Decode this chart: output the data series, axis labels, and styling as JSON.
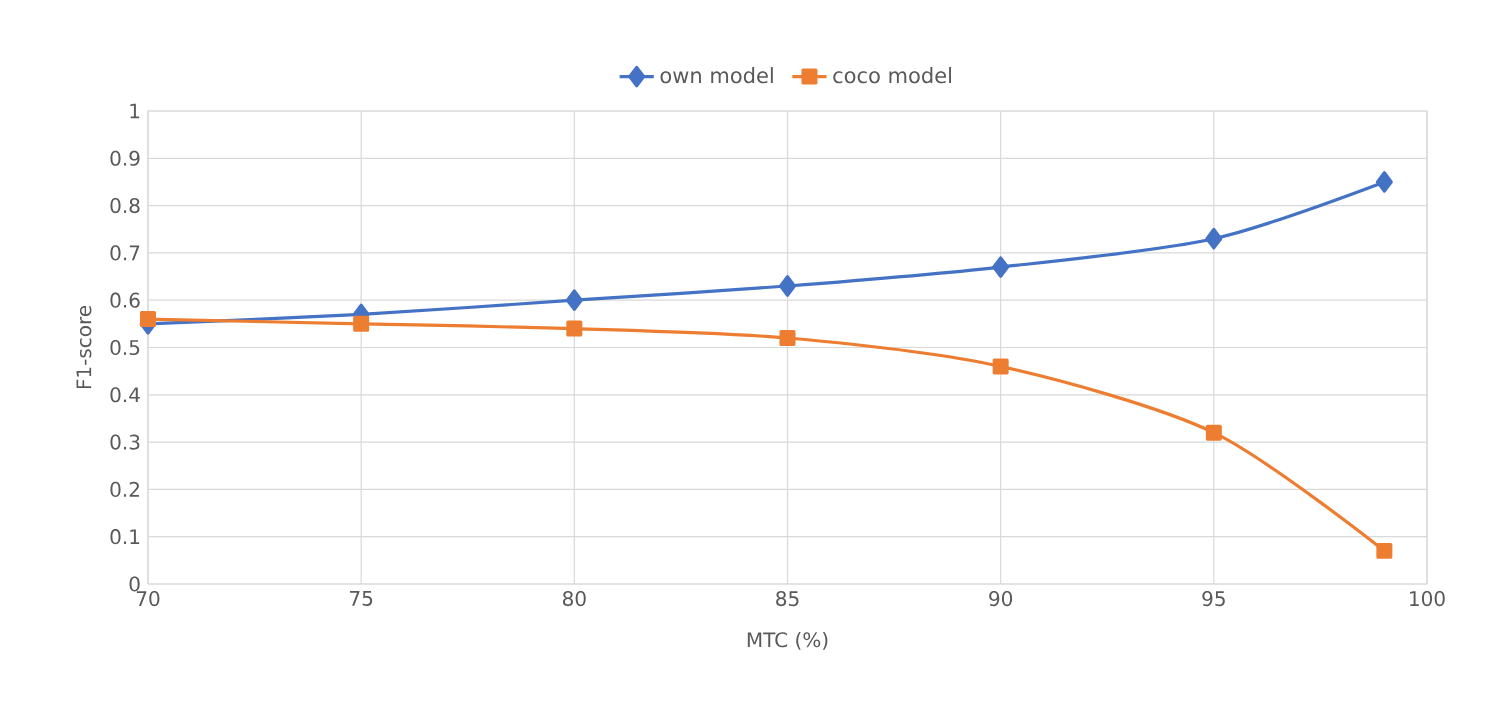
{
  "chart_data": {
    "type": "line",
    "xlabel": "MTC (%)",
    "ylabel": "F1-score",
    "x": [
      70,
      75,
      80,
      85,
      90,
      95,
      99
    ],
    "series": [
      {
        "name": "own model",
        "color": "#4472c4",
        "marker": "diamond",
        "values": [
          0.55,
          0.57,
          0.6,
          0.63,
          0.67,
          0.73,
          0.85
        ]
      },
      {
        "name": "coco model",
        "color": "#ed7d31",
        "marker": "square",
        "values": [
          0.56,
          0.55,
          0.54,
          0.52,
          0.46,
          0.32,
          0.07
        ]
      }
    ],
    "xlim": [
      70,
      100
    ],
    "ylim": [
      0,
      1
    ],
    "xticks": [
      70,
      75,
      80,
      85,
      90,
      95,
      100
    ],
    "yticks": [
      0,
      0.1,
      0.2,
      0.3,
      0.4,
      0.5,
      0.6,
      0.7,
      0.8,
      0.9,
      1
    ],
    "grid": true,
    "legend": "top",
    "line_style": "solid"
  }
}
